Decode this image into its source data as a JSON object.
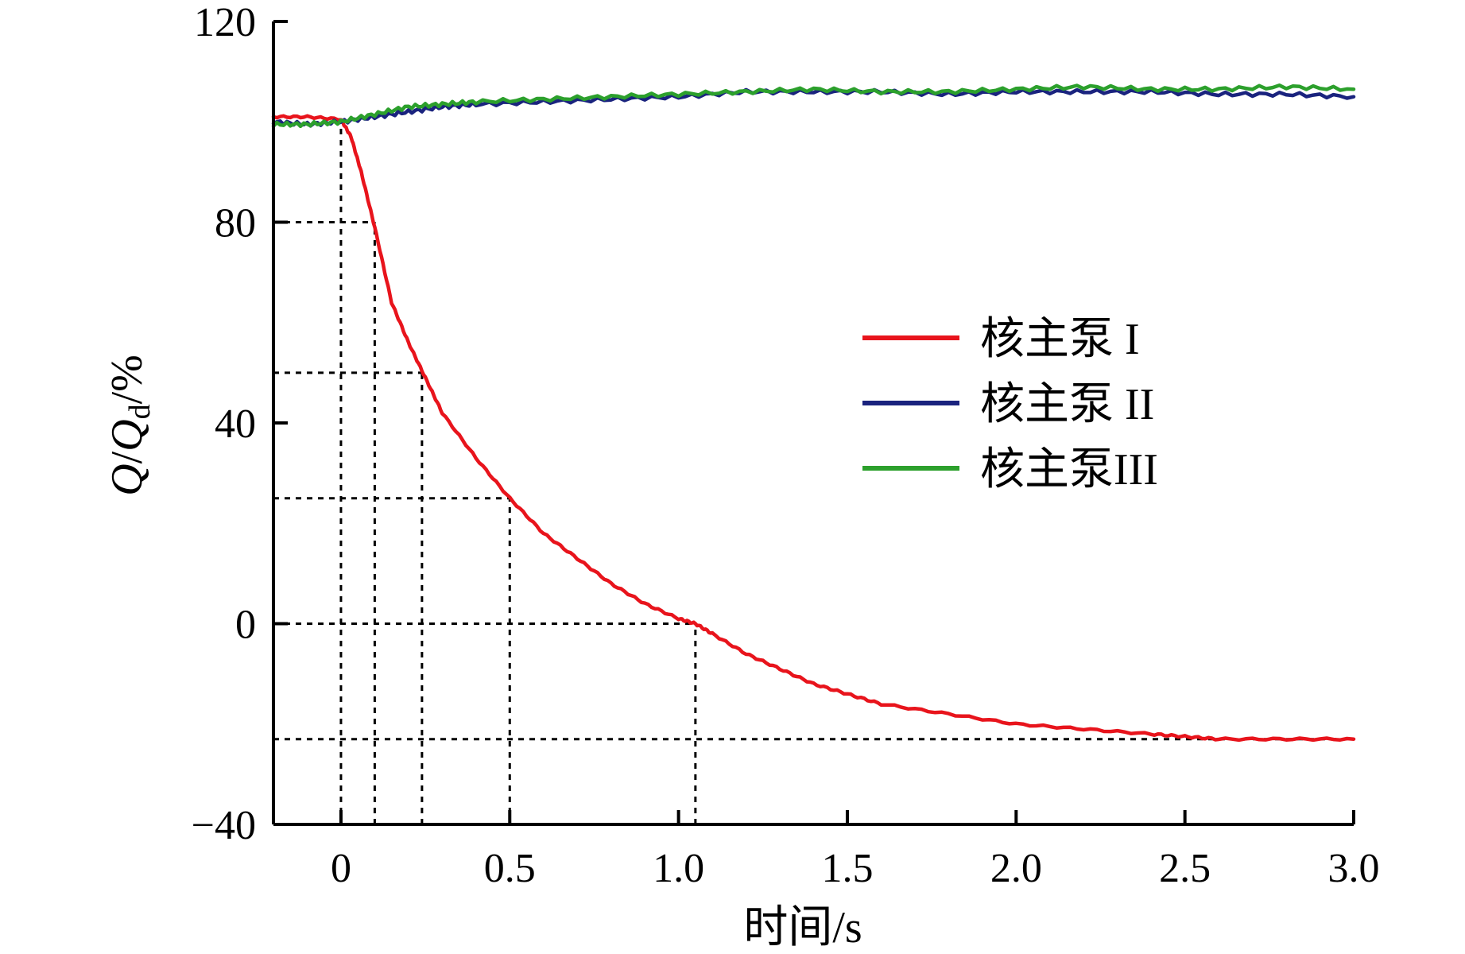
{
  "chart_data": {
    "type": "line",
    "xlabel": "时间/s",
    "ylabel": {
      "prefix": "Q",
      "slash": "/",
      "q": "Q",
      "sub": "d",
      "suffix": "/%"
    },
    "xlim": [
      -0.2,
      3.0
    ],
    "ylim": [
      -40,
      120
    ],
    "x_ticks": [
      0,
      0.5,
      1.0,
      1.5,
      2.0,
      2.5,
      3.0
    ],
    "x_tick_labels": [
      "0",
      "0.5",
      "1.0",
      "1.5",
      "2.0",
      "2.5",
      "3.0"
    ],
    "y_ticks": [
      -40,
      0,
      40,
      80,
      120
    ],
    "y_tick_labels": [
      "−40",
      "0",
      "40",
      "80",
      "120"
    ],
    "legend_position": "center-right",
    "series": [
      {
        "name": "核主泵 I",
        "color": "#e8141c",
        "x": [
          -0.2,
          -0.1,
          0.0,
          0.03,
          0.06,
          0.1,
          0.15,
          0.2,
          0.25,
          0.3,
          0.4,
          0.5,
          0.6,
          0.7,
          0.8,
          0.9,
          1.0,
          1.05,
          1.1,
          1.2,
          1.3,
          1.4,
          1.5,
          1.6,
          1.8,
          2.0,
          2.2,
          2.4,
          2.5,
          2.6,
          2.8,
          3.0
        ],
        "y": [
          101,
          101,
          100.5,
          97,
          90,
          79,
          64,
          56,
          49,
          42,
          33,
          25,
          18,
          13,
          8,
          4,
          1,
          0,
          -2,
          -6,
          -9,
          -12,
          -14,
          -16,
          -18,
          -20,
          -21,
          -22,
          -22.5,
          -23,
          -23,
          -23
        ]
      },
      {
        "name": "核主泵 II",
        "color": "#1a237e",
        "x": [
          -0.2,
          -0.1,
          0.0,
          0.1,
          0.2,
          0.3,
          0.4,
          0.6,
          0.8,
          1.0,
          1.2,
          1.4,
          1.6,
          1.8,
          2.0,
          2.2,
          2.4,
          2.6,
          2.8,
          3.0
        ],
        "y": [
          100,
          99.5,
          100,
          101,
          102,
          103,
          103.5,
          104,
          104.5,
          105,
          106,
          106,
          106,
          105.5,
          106,
          106,
          106,
          105.5,
          105.5,
          105
        ]
      },
      {
        "name": "核主泵III",
        "color": "#2ca02c",
        "x": [
          -0.2,
          -0.1,
          0.0,
          0.1,
          0.2,
          0.3,
          0.4,
          0.6,
          0.8,
          1.0,
          1.2,
          1.4,
          1.6,
          1.8,
          2.0,
          2.2,
          2.4,
          2.6,
          2.8,
          3.0
        ],
        "y": [
          99.5,
          99.5,
          100,
          101.5,
          103,
          103.5,
          104,
          104.5,
          105,
          105.5,
          106,
          106.5,
          106,
          106,
          106.5,
          107,
          106.5,
          106.5,
          107,
          106.5
        ]
      }
    ],
    "reference_lines": {
      "horizontal": [
        {
          "y": 80,
          "x_start": -0.2,
          "x_end": 0.1
        },
        {
          "y": 50,
          "x_start": -0.2,
          "x_end": 0.24
        },
        {
          "y": 25,
          "x_start": -0.2,
          "x_end": 0.5
        },
        {
          "y": 0,
          "x_start": -0.2,
          "x_end": 1.05
        },
        {
          "y": -23,
          "x_start": -0.2,
          "x_end": 3.0
        }
      ],
      "vertical": [
        {
          "x": 0.0,
          "y_start": -40,
          "y_end": 100
        },
        {
          "x": 0.1,
          "y_start": -40,
          "y_end": 80
        },
        {
          "x": 0.24,
          "y_start": -40,
          "y_end": 50
        },
        {
          "x": 0.5,
          "y_start": -40,
          "y_end": 25
        },
        {
          "x": 1.05,
          "y_start": -40,
          "y_end": 0
        }
      ]
    }
  }
}
